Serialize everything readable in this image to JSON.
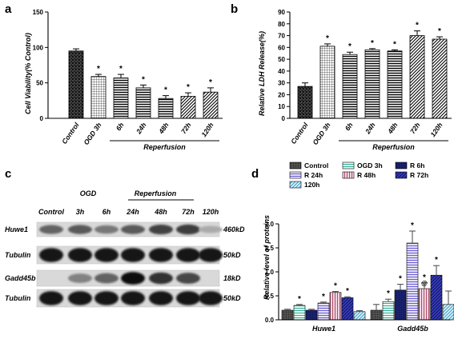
{
  "chart_data": [
    {
      "panel": "a",
      "type": "bar",
      "ylabel": "Cell Viability(% Control)",
      "yticks": [
        "0",
        "50",
        "100",
        "150"
      ],
      "ylim": [
        0,
        150
      ],
      "categories": [
        "Control",
        "OGD 3h",
        "6h",
        "24h",
        "48h",
        "72h",
        "120h"
      ],
      "values": [
        95,
        59,
        57,
        43,
        28,
        31,
        37
      ],
      "errors": [
        3,
        3,
        5,
        4,
        4,
        5,
        6
      ],
      "significant": [
        false,
        true,
        true,
        true,
        true,
        true,
        true
      ],
      "sig_marker": "*",
      "group_label": "Reperfusion"
    },
    {
      "panel": "b",
      "type": "bar",
      "ylabel": "Relative LDH Release(%)",
      "yticks": [
        "0",
        "10",
        "20",
        "30",
        "40",
        "50",
        "60",
        "70",
        "80",
        "90"
      ],
      "ylim": [
        0,
        90
      ],
      "categories": [
        "Control",
        "OGD 3h",
        "6h",
        "24h",
        "48h",
        "72h",
        "120h"
      ],
      "values": [
        27,
        61,
        54,
        58,
        57,
        70,
        67
      ],
      "errors": [
        3,
        2,
        2,
        1,
        1,
        4,
        2
      ],
      "significant": [
        false,
        true,
        true,
        true,
        true,
        true,
        true
      ],
      "sig_marker": "*",
      "group_label": "Reperfusion"
    },
    {
      "panel": "d",
      "type": "bar",
      "ylabel": "Relative level of proteins",
      "yticks": [
        "0.0",
        "0.5",
        "1.0",
        "1.5",
        "2.0"
      ],
      "ylim": [
        0,
        2.0
      ],
      "categories": [
        "Huwe1",
        "Gadd45b"
      ],
      "series": [
        {
          "name": "Control",
          "values": [
            0.2,
            0.2
          ],
          "errors": [
            0.02,
            0.12
          ],
          "markers": [
            "",
            ""
          ]
        },
        {
          "name": "OGD 3h",
          "values": [
            0.3,
            0.38
          ],
          "errors": [
            0.02,
            0.05
          ],
          "markers": [
            "*",
            "*"
          ]
        },
        {
          "name": "R 6h",
          "values": [
            0.2,
            0.62
          ],
          "errors": [
            0.02,
            0.12
          ],
          "markers": [
            "",
            "*"
          ]
        },
        {
          "name": "R 24h",
          "values": [
            0.35,
            1.6
          ],
          "errors": [
            0.02,
            0.25
          ],
          "markers": [
            "*",
            "*"
          ]
        },
        {
          "name": "R 48h",
          "values": [
            0.57,
            0.65
          ],
          "errors": [
            0.02,
            0.12
          ],
          "markers": [
            "*",
            "*@"
          ]
        },
        {
          "name": "R 72h",
          "values": [
            0.46,
            0.93
          ],
          "errors": [
            0.02,
            0.2
          ],
          "markers": [
            "*",
            "*"
          ]
        },
        {
          "name": "120h",
          "values": [
            0.17,
            0.32
          ],
          "errors": [
            0.02,
            0.28
          ],
          "markers": [
            "",
            ""
          ]
        }
      ]
    }
  ],
  "panels": {
    "a": {
      "label": "a"
    },
    "b": {
      "label": "b"
    },
    "c": {
      "label": "c"
    },
    "d": {
      "label": "d"
    }
  },
  "blot": {
    "header_ogd": "OGD",
    "header_reperfusion": "Reperfusion",
    "lanes": [
      "Control",
      "3h",
      "6h",
      "24h",
      "48h",
      "72h",
      "120h"
    ],
    "rows": [
      {
        "name": "Huwe1",
        "size": "460kD",
        "intensity": [
          0.55,
          0.6,
          0.45,
          0.6,
          0.72,
          0.75,
          0.2
        ]
      },
      {
        "name": "Tubulin",
        "size": "50kD",
        "intensity": [
          0.95,
          0.95,
          0.95,
          0.95,
          0.95,
          0.95,
          0.95
        ]
      },
      {
        "name": "Gadd45b",
        "size": "18kD",
        "intensity": [
          0.0,
          0.4,
          0.55,
          0.97,
          0.8,
          0.7,
          0.0
        ]
      },
      {
        "name": "Tubulin",
        "size": "50kD",
        "intensity": [
          0.95,
          0.95,
          0.95,
          0.95,
          0.95,
          0.95,
          0.95
        ]
      }
    ]
  }
}
